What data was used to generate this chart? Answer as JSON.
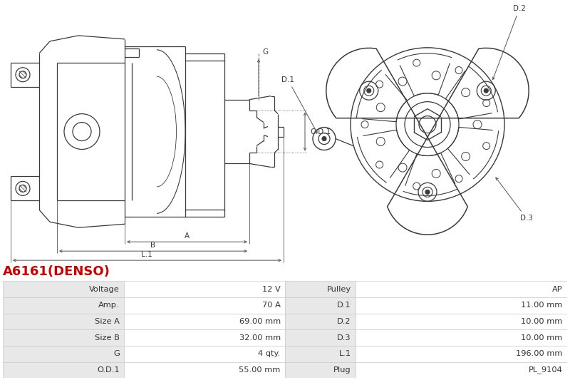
{
  "title": "A6161(DENSO)",
  "title_color": "#cc0000",
  "background_color": "#ffffff",
  "table_rows": [
    [
      "Voltage",
      "12 V",
      "Pulley",
      "AP"
    ],
    [
      "Amp.",
      "70 A",
      "D.1",
      "11.00 mm"
    ],
    [
      "Size A",
      "69.00 mm",
      "D.2",
      "10.00 mm"
    ],
    [
      "Size B",
      "32.00 mm",
      "D.3",
      "10.00 mm"
    ],
    [
      "G",
      "4 qty.",
      "L.1",
      "196.00 mm"
    ],
    [
      "O.D.1",
      "55.00 mm",
      "Plug",
      "PL_9104"
    ]
  ],
  "line_color": "#3a3a3a",
  "dim_line_color": "#555555",
  "label_color": "#3a3a3a",
  "table_label_bg": "#e8e8e8",
  "table_value_bg": "#f5f5f5",
  "table_border_color": "#cccccc"
}
